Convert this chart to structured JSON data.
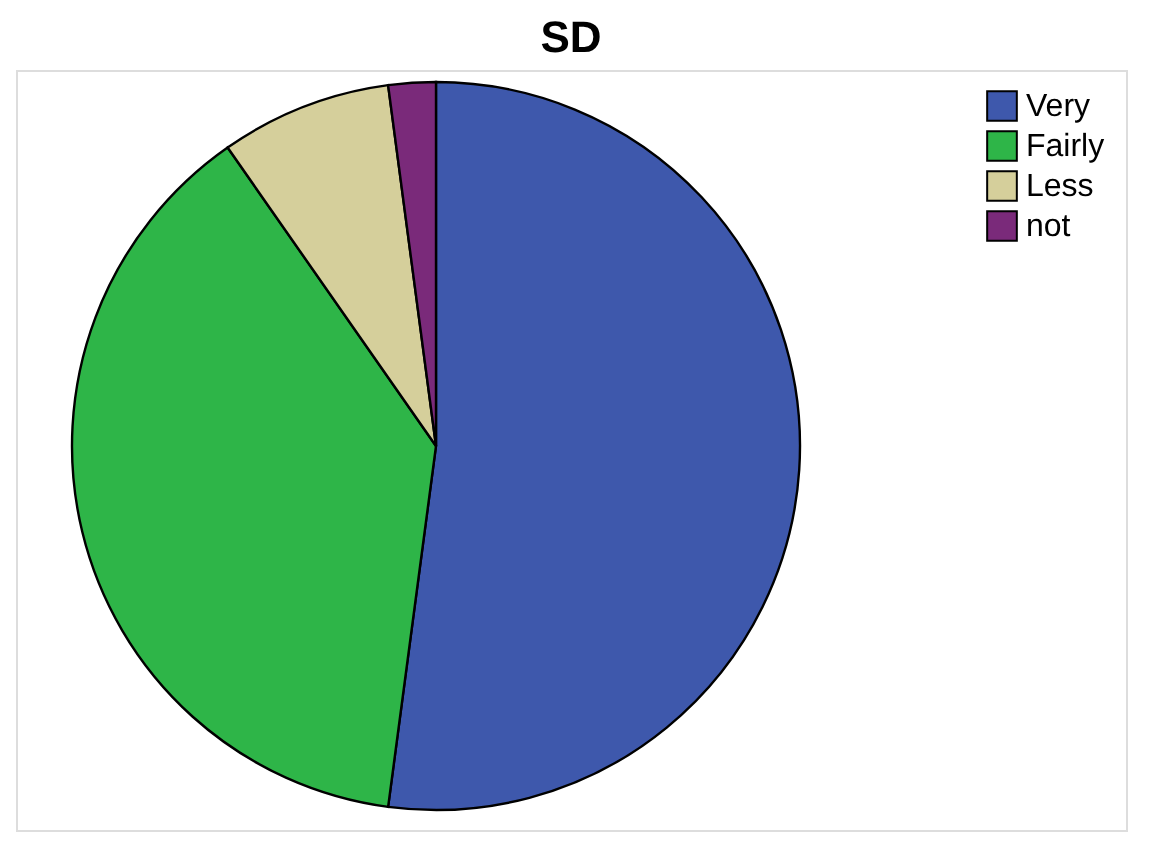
{
  "chart_data": {
    "type": "pie",
    "title": "SD",
    "categories": [
      "Very",
      "Fairly",
      "Less",
      "not"
    ],
    "values": [
      52.1,
      38.2,
      7.6,
      2.1
    ],
    "colors": [
      "#3e58ac",
      "#2eb548",
      "#d5cf9b",
      "#7a2a7a"
    ],
    "legend": "top right"
  }
}
